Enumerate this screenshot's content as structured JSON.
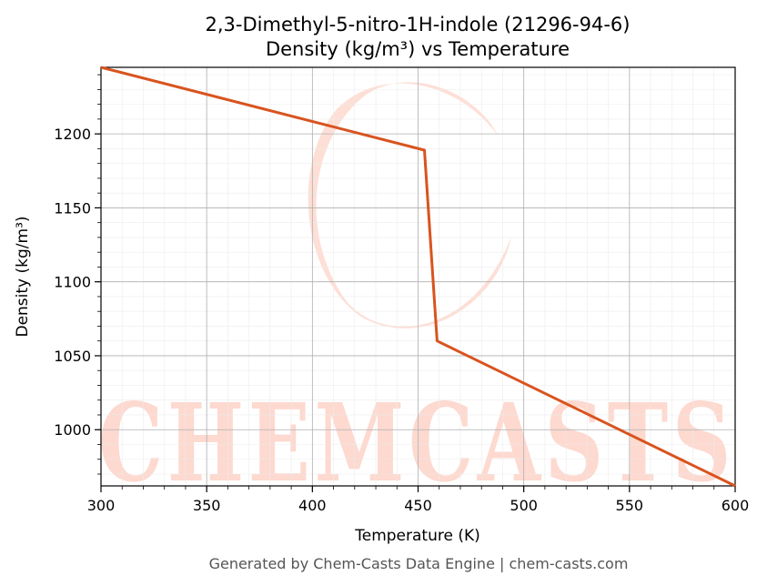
{
  "chart_data": {
    "type": "line",
    "title": "2,3-Dimethyl-5-nitro-1H-indole (21296-94-6)",
    "subtitle": "Density (kg/m³) vs Temperature",
    "xlabel": "Temperature (K)",
    "ylabel": "Density (kg/m³)",
    "xlim": [
      300,
      600
    ],
    "ylim": [
      962,
      1245
    ],
    "xticks": [
      300,
      350,
      400,
      450,
      500,
      550,
      600
    ],
    "yticks": [
      1000,
      1050,
      1100,
      1150,
      1200
    ],
    "grid": true,
    "series": [
      {
        "color": "#d9531e",
        "points": [
          [
            300,
            1245
          ],
          [
            453,
            1189
          ],
          [
            459,
            1060
          ],
          [
            600,
            962
          ]
        ]
      }
    ]
  },
  "watermark": {
    "text": "CHEMCASTS",
    "color": "#fdd9cf"
  },
  "footer": "Generated by Chem-Casts Data Engine | chem-casts.com"
}
